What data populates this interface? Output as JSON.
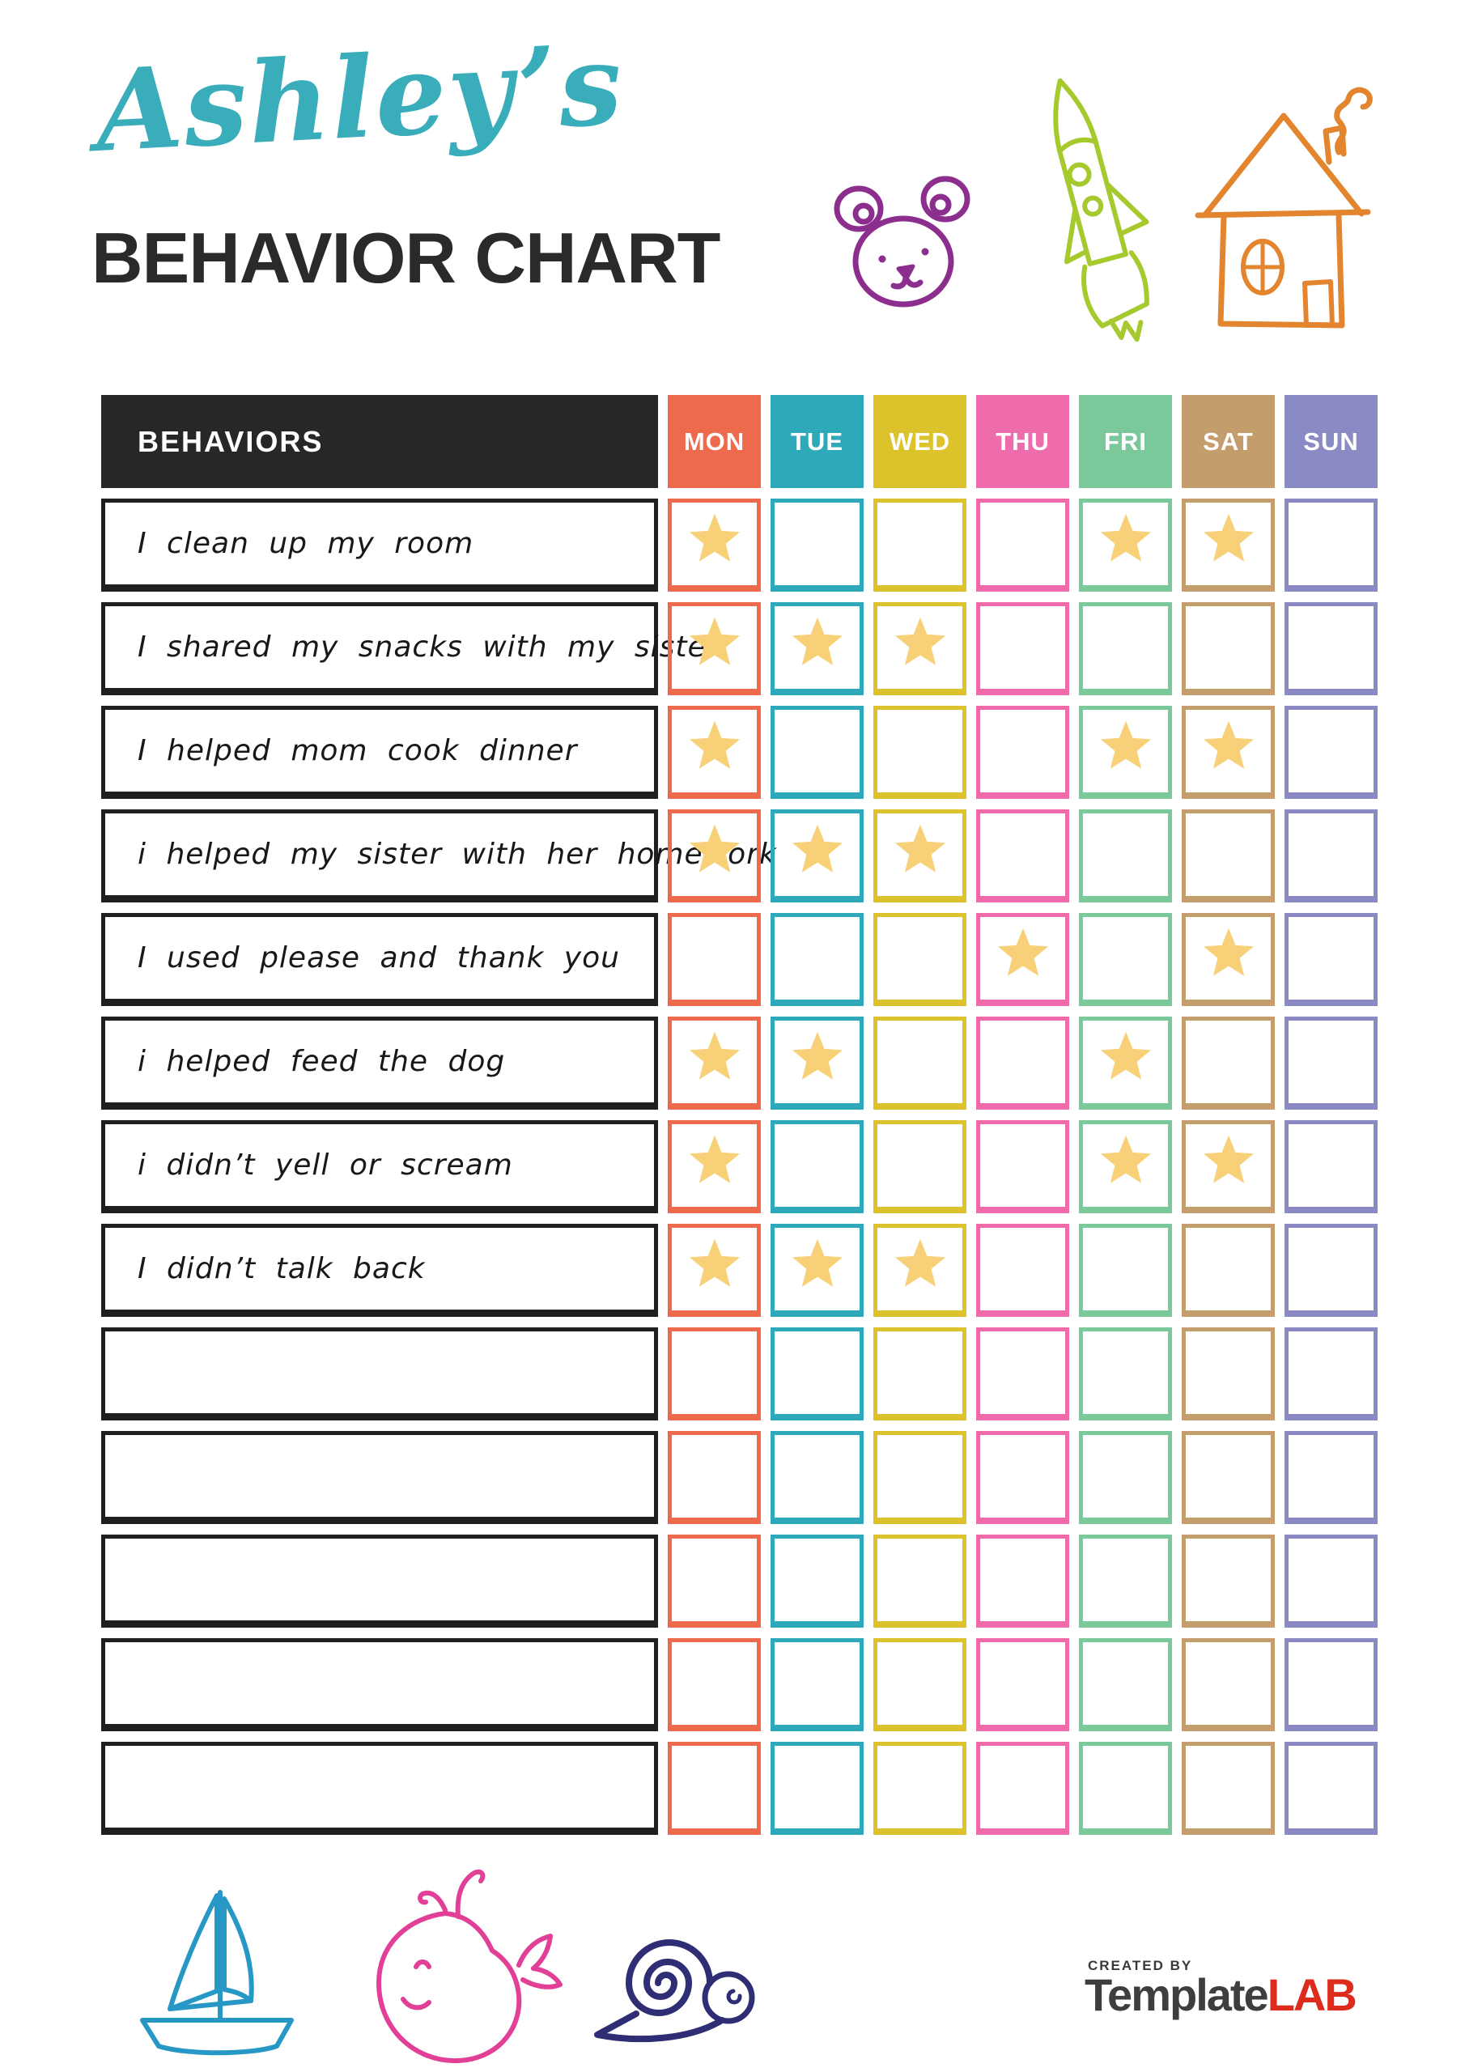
{
  "page": {
    "title_script": "Ashley’s",
    "title_main": "BEHAVIOR CHART"
  },
  "colors": {
    "title_script": "#3aadba",
    "title_main": "#2b2a29",
    "behaviors_header_bg": "#282626",
    "row_border": "#1f1f1f",
    "star": "#f7d078",
    "bear": "#8c2e8e",
    "rocket": "#a6c92d",
    "house": "#e2852e",
    "sailboat": "#2798c6",
    "whale": "#e23f97",
    "snail": "#2f2d74"
  },
  "table": {
    "behaviors_header": "BEHAVIORS",
    "star_color": "#f7d078",
    "days": [
      {
        "label": "MON",
        "color": "#ed6a4d"
      },
      {
        "label": "TUE",
        "color": "#2ea9ba"
      },
      {
        "label": "WED",
        "color": "#dcc22b"
      },
      {
        "label": "THU",
        "color": "#ee6cab"
      },
      {
        "label": "FRI",
        "color": "#7bc89a"
      },
      {
        "label": "SAT",
        "color": "#c49d6d"
      },
      {
        "label": "SUN",
        "color": "#8a8ac5"
      }
    ],
    "rows": [
      {
        "label": "I clean up my room",
        "stars": [
          "MON",
          "FRI",
          "SAT"
        ]
      },
      {
        "label": "I shared my snacks with my sister",
        "stars": [
          "MON",
          "TUE",
          "WED"
        ]
      },
      {
        "label": "I helped mom cook dinner",
        "stars": [
          "MON",
          "FRI",
          "SAT"
        ]
      },
      {
        "label": "i helped my sister with her homework",
        "stars": [
          "MON",
          "TUE",
          "WED"
        ]
      },
      {
        "label": "I used please and thank you",
        "stars": [
          "THU",
          "SAT"
        ]
      },
      {
        "label": "i helped feed the dog",
        "stars": [
          "MON",
          "TUE",
          "FRI"
        ]
      },
      {
        "label": "i didn’t yell or scream",
        "stars": [
          "MON",
          "FRI",
          "SAT"
        ]
      },
      {
        "label": "I didn’t talk back",
        "stars": [
          "MON",
          "TUE",
          "WED"
        ]
      },
      {
        "label": "",
        "stars": []
      },
      {
        "label": "",
        "stars": []
      },
      {
        "label": "",
        "stars": []
      },
      {
        "label": "",
        "stars": []
      },
      {
        "label": "",
        "stars": []
      }
    ]
  },
  "doodles": {
    "top": [
      "bear",
      "rocket",
      "house"
    ],
    "bottom": [
      "sailboat",
      "whale",
      "snail"
    ]
  },
  "footer": {
    "created_by": "CREATED BY",
    "brand_name": "Template",
    "brand_suffix": "LAB"
  }
}
